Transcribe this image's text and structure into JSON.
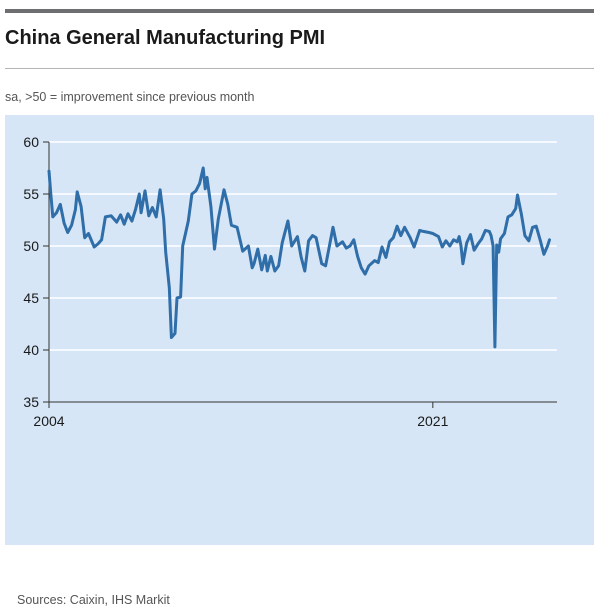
{
  "header": {
    "title": "China General Manufacturing PMI",
    "subtitle": "sa, >50 = improvement since previous month"
  },
  "footer": {
    "source": "Sources: Caixin, IHS Markit"
  },
  "colors": {
    "line": "#2f6ea8",
    "panel": "#d6e6f6",
    "grid": "#ffffff",
    "axis": "#333333"
  },
  "chart_data": {
    "type": "line",
    "title": "China General Manufacturing PMI",
    "subtitle": "sa, >50 = improvement since previous month",
    "xlabel": "",
    "ylabel": "",
    "ylim": [
      35,
      60
    ],
    "yticks": [
      35,
      40,
      45,
      50,
      55,
      60
    ],
    "xticks": [
      {
        "value": 2004.0,
        "label": "2004"
      },
      {
        "value": 2021.0,
        "label": "2021"
      }
    ],
    "grid": "horizontal",
    "legend": "none",
    "series": [
      {
        "values": [
          [
            2004.0,
            57.2
          ],
          [
            2004.08,
            55.0
          ],
          [
            2004.17,
            52.8
          ],
          [
            2004.33,
            53.2
          ],
          [
            2004.5,
            54.0
          ],
          [
            2004.67,
            52.2
          ],
          [
            2004.83,
            51.3
          ],
          [
            2005.0,
            52.0
          ],
          [
            2005.17,
            53.5
          ],
          [
            2005.25,
            55.2
          ],
          [
            2005.42,
            53.8
          ],
          [
            2005.58,
            50.8
          ],
          [
            2005.75,
            51.2
          ],
          [
            2006.0,
            49.9
          ],
          [
            2006.17,
            50.2
          ],
          [
            2006.33,
            50.6
          ],
          [
            2006.5,
            52.8
          ],
          [
            2006.75,
            52.9
          ],
          [
            2007.0,
            52.3
          ],
          [
            2007.17,
            53.0
          ],
          [
            2007.33,
            52.1
          ],
          [
            2007.5,
            53.1
          ],
          [
            2007.67,
            52.4
          ],
          [
            2007.83,
            53.5
          ],
          [
            2008.0,
            55.0
          ],
          [
            2008.08,
            53.2
          ],
          [
            2008.25,
            55.3
          ],
          [
            2008.42,
            52.9
          ],
          [
            2008.58,
            53.7
          ],
          [
            2008.75,
            52.8
          ],
          [
            2008.92,
            55.4
          ],
          [
            2009.08,
            52.6
          ],
          [
            2009.17,
            49.4
          ],
          [
            2009.33,
            46.0
          ],
          [
            2009.42,
            41.2
          ],
          [
            2009.58,
            41.6
          ],
          [
            2009.67,
            45.0
          ],
          [
            2009.83,
            45.1
          ],
          [
            2009.92,
            50.0
          ],
          [
            2010.17,
            52.4
          ],
          [
            2010.33,
            55.0
          ],
          [
            2010.5,
            55.3
          ],
          [
            2010.67,
            56.0
          ],
          [
            2010.83,
            57.5
          ],
          [
            2010.92,
            55.5
          ],
          [
            2011.0,
            56.6
          ],
          [
            2011.17,
            53.8
          ],
          [
            2011.33,
            49.7
          ],
          [
            2011.5,
            52.6
          ],
          [
            2011.75,
            55.4
          ],
          [
            2011.92,
            54.0
          ],
          [
            2012.08,
            52.0
          ],
          [
            2012.33,
            51.8
          ],
          [
            2012.58,
            49.5
          ],
          [
            2012.83,
            50.0
          ],
          [
            2013.0,
            47.9
          ],
          [
            2013.08,
            48.3
          ],
          [
            2013.25,
            49.7
          ],
          [
            2013.42,
            47.7
          ],
          [
            2013.58,
            49.1
          ],
          [
            2013.67,
            47.6
          ],
          [
            2013.83,
            49.0
          ],
          [
            2014.0,
            47.6
          ],
          [
            2014.17,
            48.1
          ],
          [
            2014.33,
            50.3
          ],
          [
            2014.58,
            52.4
          ],
          [
            2014.75,
            50.0
          ],
          [
            2015.0,
            50.9
          ],
          [
            2015.17,
            48.9
          ],
          [
            2015.33,
            47.6
          ],
          [
            2015.5,
            50.5
          ],
          [
            2015.67,
            51.0
          ],
          [
            2015.83,
            50.8
          ],
          [
            2016.08,
            48.3
          ],
          [
            2016.25,
            48.1
          ],
          [
            2016.42,
            50.0
          ],
          [
            2016.58,
            51.8
          ],
          [
            2016.75,
            50.0
          ],
          [
            2017.0,
            50.4
          ],
          [
            2017.17,
            49.8
          ],
          [
            2017.33,
            50.0
          ],
          [
            2017.5,
            50.6
          ],
          [
            2017.67,
            49.0
          ],
          [
            2017.83,
            47.9
          ],
          [
            2018.0,
            47.3
          ],
          [
            2018.17,
            48.1
          ],
          [
            2018.42,
            48.6
          ],
          [
            2018.58,
            48.4
          ],
          [
            2018.75,
            49.9
          ],
          [
            2018.92,
            48.9
          ],
          [
            2019.08,
            50.4
          ],
          [
            2019.25,
            50.8
          ],
          [
            2019.42,
            51.9
          ],
          [
            2019.58,
            51.0
          ],
          [
            2019.75,
            51.8
          ],
          [
            2020.0,
            50.8
          ],
          [
            2020.17,
            49.9
          ],
          [
            2020.42,
            51.5
          ],
          [
            2020.58,
            51.4
          ],
          [
            2020.83,
            51.3
          ],
          [
            2021.0,
            51.2
          ],
          [
            2021.25,
            50.9
          ],
          [
            2021.42,
            49.9
          ],
          [
            2021.58,
            50.5
          ],
          [
            2021.75,
            50.0
          ],
          [
            2021.92,
            50.6
          ],
          [
            2022.08,
            50.4
          ],
          [
            2022.17,
            50.9
          ],
          [
            2022.25,
            50.0
          ],
          [
            2022.33,
            48.3
          ],
          [
            2022.5,
            50.3
          ],
          [
            2022.67,
            51.1
          ],
          [
            2022.83,
            49.6
          ],
          [
            2023.0,
            50.2
          ],
          [
            2023.17,
            50.7
          ],
          [
            2023.33,
            51.5
          ],
          [
            2023.5,
            51.4
          ],
          [
            2023.58,
            51.0
          ],
          [
            2023.67,
            50.0
          ],
          [
            2023.75,
            40.3
          ],
          [
            2023.83,
            50.1
          ],
          [
            2023.92,
            49.4
          ],
          [
            2024.0,
            50.7
          ],
          [
            2024.17,
            51.2
          ],
          [
            2024.33,
            52.8
          ],
          [
            2024.5,
            53.0
          ],
          [
            2024.67,
            53.6
          ],
          [
            2024.75,
            54.9
          ],
          [
            2024.92,
            53.1
          ],
          [
            2025.08,
            51.0
          ],
          [
            2025.25,
            50.5
          ],
          [
            2025.42,
            51.8
          ],
          [
            2025.58,
            51.9
          ],
          [
            2025.75,
            50.6
          ],
          [
            2025.92,
            49.2
          ],
          [
            2026.08,
            50.0
          ],
          [
            2026.17,
            50.6
          ]
        ]
      }
    ]
  }
}
